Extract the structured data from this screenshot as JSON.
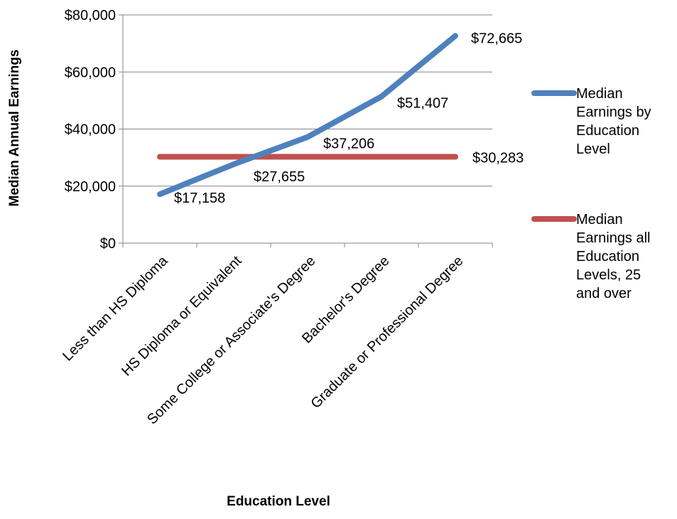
{
  "chart_data": {
    "type": "line",
    "title": "",
    "xlabel": "Education Level",
    "ylabel": "Median Annual Earnings",
    "categories": [
      "Less than HS Diploma",
      "HS Diploma or Equivalent",
      "Some College or Associate's Degree",
      "Bachelor's Degree",
      "Graduate or Professional Degree"
    ],
    "ylim": [
      0,
      80000
    ],
    "yticks": [
      0,
      20000,
      40000,
      60000,
      80000
    ],
    "ytick_labels": [
      "$0",
      "$20,000",
      "$40,000",
      "$60,000",
      "$80,000"
    ],
    "grid": "horizontal",
    "legend_position": "right",
    "series": [
      {
        "name": "Median Earnings by Education Level",
        "legend_lines": [
          "Median",
          "Earnings by",
          "Education",
          "Level"
        ],
        "color": "#4F81BD",
        "values": [
          17158,
          27655,
          37206,
          51407,
          72665
        ],
        "data_labels": [
          "$17,158",
          "$27,655",
          "$37,206",
          "$51,407",
          "$72,665"
        ]
      },
      {
        "name": "Median Earnings all Education Levels, 25 and over",
        "legend_lines": [
          "Median",
          "Earnings all",
          "Education",
          "Levels, 25",
          "and over"
        ],
        "color": "#C0504D",
        "values": [
          30283,
          30283,
          30283,
          30283,
          30283
        ],
        "data_labels": [
          "$30,283"
        ]
      }
    ]
  }
}
